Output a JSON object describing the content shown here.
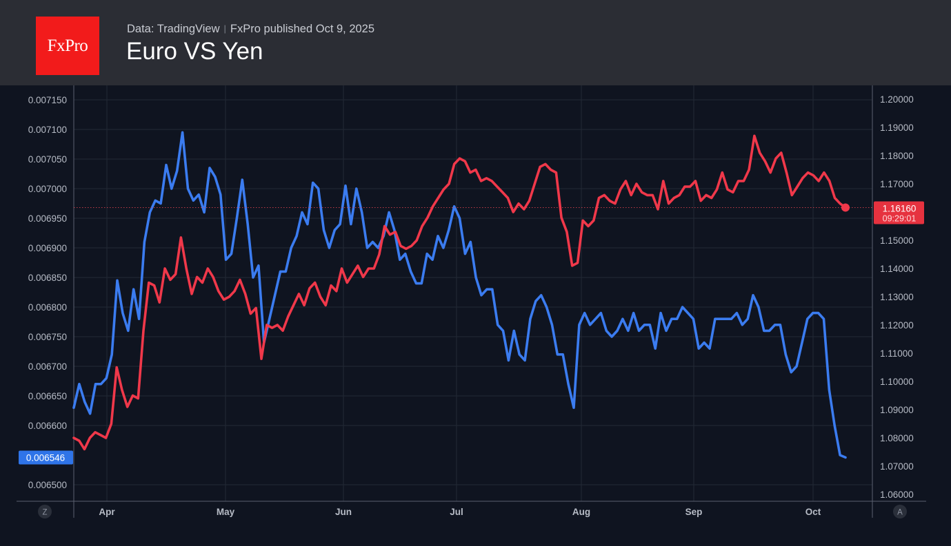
{
  "header": {
    "logo_text": "FxPro",
    "source": "Data: TradingView",
    "published": "FxPro published Oct 9,  2025",
    "title": "Euro VS Yen"
  },
  "axis_buttons": {
    "left": "Z",
    "right": "A"
  },
  "colors": {
    "background": "#0f1420",
    "header": "#2b2d34",
    "grid": "#232a36",
    "axis_text": "#b7bcc6",
    "blue_series": "#3b7cf0",
    "red_series": "#f0384a",
    "logo": "#f21b1b"
  },
  "chart_data": {
    "type": "line",
    "x_ticks": [
      "Apr",
      "May",
      "Jun",
      "Jul",
      "Aug",
      "Sep",
      "Oct"
    ],
    "y_left": {
      "ticks": [
        "0.007150",
        "0.007100",
        "0.007050",
        "0.007000",
        "0.006950",
        "0.006900",
        "0.006850",
        "0.006800",
        "0.006750",
        "0.006700",
        "0.006650",
        "0.006600",
        "0.006500"
      ],
      "current_label": "0.006546",
      "current_value": 0.006546
    },
    "y_right": {
      "ticks": [
        "1.20000",
        "1.19000",
        "1.18000",
        "1.17000",
        "1.16000",
        "1.15000",
        "1.14000",
        "1.13000",
        "1.12000",
        "1.11000",
        "1.10000",
        "1.09000",
        "1.08000",
        "1.07000",
        "1.06000"
      ],
      "current_label": "1.16160",
      "current_time": "09:29:01",
      "current_value": 1.1616
    },
    "series": [
      {
        "axis": "left",
        "color": "#3b7cf0",
        "values": [
          0.00663,
          0.00667,
          0.00664,
          0.00662,
          0.00667,
          0.00667,
          0.00668,
          0.00672,
          0.006845,
          0.00679,
          0.00676,
          0.00683,
          0.00678,
          0.00691,
          0.00696,
          0.00698,
          0.006975,
          0.00704,
          0.007,
          0.00703,
          0.007095,
          0.007,
          0.00698,
          0.00699,
          0.00696,
          0.007035,
          0.00702,
          0.00699,
          0.00688,
          0.00689,
          0.00695,
          0.007015,
          0.00694,
          0.00685,
          0.00687,
          0.00674,
          0.00678,
          0.00682,
          0.00686,
          0.00686,
          0.0069,
          0.00692,
          0.00696,
          0.00694,
          0.00701,
          0.007,
          0.00693,
          0.0069,
          0.00693,
          0.00694,
          0.007005,
          0.00694,
          0.007,
          0.00696,
          0.0069,
          0.00691,
          0.0069,
          0.00692,
          0.00696,
          0.00693,
          0.00688,
          0.00689,
          0.00686,
          0.00684,
          0.00684,
          0.00689,
          0.00688,
          0.00692,
          0.0069,
          0.00693,
          0.00697,
          0.00695,
          0.00689,
          0.00691,
          0.00685,
          0.00682,
          0.00683,
          0.00683,
          0.00677,
          0.00676,
          0.00671,
          0.00676,
          0.00672,
          0.00671,
          0.00678,
          0.00681,
          0.00682,
          0.0068,
          0.00677,
          0.00672,
          0.00672,
          0.00667,
          0.00663,
          0.00677,
          0.00679,
          0.00677,
          0.00678,
          0.00679,
          0.00676,
          0.00675,
          0.00676,
          0.00678,
          0.00676,
          0.00679,
          0.00676,
          0.00677,
          0.00677,
          0.00673,
          0.00679,
          0.00676,
          0.00678,
          0.00678,
          0.0068,
          0.00679,
          0.00678,
          0.00673,
          0.00674,
          0.00673,
          0.00678,
          0.00678,
          0.00678,
          0.00678,
          0.00679,
          0.00677,
          0.00678,
          0.00682,
          0.0068,
          0.00676,
          0.00676,
          0.00677,
          0.00677,
          0.00672,
          0.00669,
          0.0067,
          0.00674,
          0.00678,
          0.00679,
          0.00679,
          0.00678,
          0.00666,
          0.0066,
          0.00655,
          0.006546
        ]
      },
      {
        "axis": "right",
        "color": "#f0384a",
        "values": [
          1.08,
          1.079,
          1.076,
          1.08,
          1.082,
          1.081,
          1.08,
          1.085,
          1.105,
          1.097,
          1.091,
          1.095,
          1.094,
          1.118,
          1.135,
          1.134,
          1.128,
          1.14,
          1.136,
          1.138,
          1.151,
          1.14,
          1.131,
          1.137,
          1.135,
          1.14,
          1.137,
          1.132,
          1.129,
          1.13,
          1.132,
          1.136,
          1.131,
          1.124,
          1.126,
          1.108,
          1.12,
          1.119,
          1.12,
          1.118,
          1.123,
          1.127,
          1.131,
          1.127,
          1.133,
          1.135,
          1.13,
          1.127,
          1.134,
          1.132,
          1.14,
          1.135,
          1.138,
          1.141,
          1.137,
          1.14,
          1.14,
          1.145,
          1.155,
          1.152,
          1.153,
          1.148,
          1.147,
          1.148,
          1.15,
          1.155,
          1.158,
          1.162,
          1.165,
          1.168,
          1.17,
          1.177,
          1.179,
          1.178,
          1.174,
          1.175,
          1.171,
          1.172,
          1.171,
          1.169,
          1.167,
          1.165,
          1.16,
          1.163,
          1.161,
          1.164,
          1.17,
          1.176,
          1.177,
          1.175,
          1.174,
          1.158,
          1.153,
          1.141,
          1.142,
          1.157,
          1.155,
          1.157,
          1.165,
          1.166,
          1.164,
          1.163,
          1.168,
          1.171,
          1.166,
          1.17,
          1.167,
          1.166,
          1.166,
          1.161,
          1.171,
          1.163,
          1.165,
          1.166,
          1.169,
          1.169,
          1.171,
          1.164,
          1.166,
          1.165,
          1.168,
          1.174,
          1.168,
          1.167,
          1.171,
          1.171,
          1.175,
          1.187,
          1.181,
          1.178,
          1.174,
          1.179,
          1.181,
          1.174,
          1.166,
          1.169,
          1.172,
          1.174,
          1.173,
          1.171,
          1.174,
          1.171,
          1.165,
          1.163,
          1.1616
        ]
      }
    ]
  }
}
